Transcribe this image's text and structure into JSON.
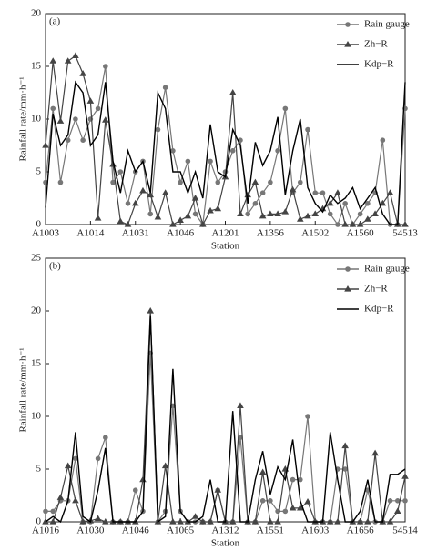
{
  "chart_data": [
    {
      "type": "line",
      "panel_label": "(a)",
      "x_label": "Station",
      "y_label": "Rainfall rate/mm·h⁻¹",
      "categories": [
        "A1003",
        null,
        null,
        null,
        null,
        null,
        "A1014",
        null,
        null,
        null,
        null,
        null,
        "A1031",
        null,
        null,
        null,
        null,
        null,
        "A1046",
        null,
        null,
        null,
        null,
        null,
        "A1201",
        null,
        null,
        null,
        null,
        null,
        "A1356",
        null,
        null,
        null,
        null,
        null,
        "A1502",
        null,
        null,
        null,
        null,
        null,
        "A1560",
        null,
        null,
        null,
        null,
        null,
        "54513"
      ],
      "ylim": [
        0,
        20
      ],
      "yticks": [
        0,
        5,
        10,
        15,
        20
      ],
      "legend": "upper right",
      "series": [
        {
          "name": "Rain gauge",
          "color": "#777777",
          "marker": "circle",
          "values": [
            4,
            11,
            4,
            8,
            10,
            8,
            10,
            11,
            15,
            4,
            5,
            2,
            5,
            6,
            1,
            9,
            13,
            7,
            4,
            6,
            1,
            0,
            6,
            4,
            5,
            7,
            8,
            1,
            2,
            3,
            4,
            7,
            11,
            3,
            4,
            9,
            3,
            3,
            1,
            0,
            2,
            0,
            1,
            2,
            3,
            8,
            0,
            0,
            11
          ]
        },
        {
          "name": "Zh−R",
          "color": "#444444",
          "marker": "triangle",
          "values": [
            7.5,
            15.5,
            9.8,
            15.5,
            16,
            14.3,
            11.7,
            0.6,
            9.9,
            5.7,
            0.3,
            0,
            2,
            3.2,
            2.8,
            0.7,
            3,
            0,
            0.4,
            0.8,
            2.5,
            0,
            1.3,
            1.5,
            4.5,
            12.5,
            1,
            2.8,
            4,
            0.8,
            1,
            1,
            1.2,
            3.3,
            0.5,
            0.8,
            1,
            1.5,
            2,
            3,
            0,
            0,
            0,
            0.5,
            1,
            2,
            3,
            0,
            0
          ]
        },
        {
          "name": "Kdp−R",
          "color": "#000000",
          "marker": "none",
          "values": [
            1.6,
            10.5,
            7.5,
            8.5,
            13.5,
            12.5,
            7.5,
            8.5,
            13.5,
            6,
            3,
            7,
            5,
            6,
            3,
            12.5,
            11,
            5,
            5,
            3,
            5,
            2.5,
            9.5,
            5,
            4.5,
            9,
            7.5,
            2,
            7.8,
            5.6,
            7,
            10.2,
            2.8,
            7,
            10,
            3.5,
            2,
            1.2,
            2.8,
            2,
            2.5,
            3.5,
            1.5,
            2.5,
            3.5,
            1,
            0,
            0,
            13.5
          ]
        }
      ]
    },
    {
      "type": "line",
      "panel_label": "(b)",
      "x_label": "Station",
      "y_label": "Rainfall rate/mm·h⁻¹",
      "categories": [
        "A1016",
        null,
        null,
        null,
        null,
        null,
        "A1030",
        null,
        null,
        null,
        null,
        null,
        "A1046",
        null,
        null,
        null,
        null,
        null,
        "A1065",
        null,
        null,
        null,
        null,
        null,
        "A1312",
        null,
        null,
        null,
        null,
        null,
        "A1551",
        null,
        null,
        null,
        null,
        null,
        "A1603",
        null,
        null,
        null,
        null,
        null,
        "A1656",
        null,
        null,
        null,
        null,
        null,
        "54514"
      ],
      "ylim": [
        0,
        25
      ],
      "yticks": [
        0,
        5,
        10,
        15,
        20,
        25
      ],
      "legend": "upper right",
      "series": [
        {
          "name": "Rain gauge",
          "color": "#777777",
          "marker": "circle",
          "values": [
            1,
            1,
            2,
            2,
            6,
            0,
            0,
            6,
            8,
            0,
            0,
            0,
            3,
            1,
            16,
            0,
            1,
            11,
            1,
            0,
            0,
            0,
            0,
            3,
            0,
            0,
            8,
            0,
            0,
            2,
            2,
            1,
            1,
            4,
            4,
            10,
            0,
            0,
            0,
            5,
            5,
            0,
            0,
            3,
            0,
            0,
            2,
            2,
            2
          ]
        },
        {
          "name": "Zh−R",
          "color": "#444444",
          "marker": "triangle",
          "values": [
            0,
            0,
            2.3,
            5.3,
            2,
            0,
            0.1,
            0.3,
            0,
            0,
            0,
            0,
            0,
            4,
            20,
            0,
            5.3,
            0,
            0,
            0,
            0.5,
            0,
            0,
            3,
            0,
            0,
            11,
            0,
            0,
            4.7,
            0,
            0,
            5,
            1.3,
            1.3,
            1.9,
            0,
            0,
            0,
            0,
            7.2,
            0,
            0,
            0,
            6.5,
            0,
            0,
            1,
            4.3
          ]
        },
        {
          "name": "Kdp−R",
          "color": "#000000",
          "marker": "none",
          "values": [
            0,
            0.5,
            0,
            2,
            8.5,
            0.5,
            0,
            3,
            7,
            0,
            0,
            0,
            0,
            1,
            19.5,
            0,
            0.5,
            14.5,
            1,
            0,
            0,
            0.5,
            4,
            0,
            0,
            10.5,
            0,
            0,
            4,
            6.7,
            2.6,
            5.2,
            4,
            7.8,
            2,
            0,
            0,
            0,
            8.5,
            4,
            0,
            0,
            1,
            4,
            0,
            0,
            4.5,
            4.5,
            5
          ]
        }
      ]
    }
  ]
}
